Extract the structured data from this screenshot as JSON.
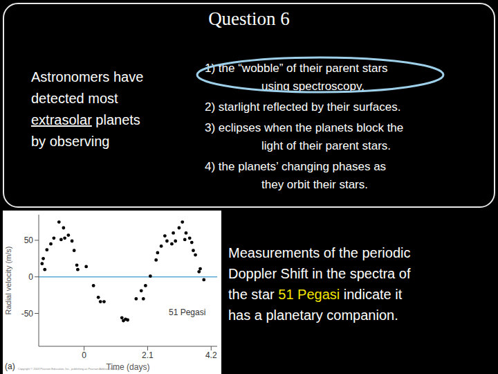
{
  "slide": {
    "title": "Question 6",
    "question": {
      "lines": [
        "Astronomers have",
        "detected most",
        "extrasolar planets",
        "by observing"
      ],
      "underlined": "extrasolar"
    },
    "options": [
      {
        "label": "1)",
        "lines": [
          "the “wobble” of their parent stars",
          "using spectroscopy."
        ]
      },
      {
        "label": "2)",
        "lines": [
          "starlight reflected by their surfaces."
        ]
      },
      {
        "label": "3)",
        "lines": [
          "eclipses when the planets block the",
          "light of their parent stars."
        ]
      },
      {
        "label": "4)",
        "lines": [
          "the planets’ changing phases as",
          "they orbit their stars."
        ]
      }
    ],
    "circled_option": 1,
    "circle_color": "#9fd0ea",
    "caption": {
      "lines": [
        "Measurements of the periodic",
        "Doppler Shift in the spectra of",
        "the star 51 Pegasi indicate it",
        "has a planetary companion."
      ],
      "highlight": "51 Pegasi",
      "highlight_color": "#f2e600"
    }
  },
  "chart_data": {
    "type": "scatter",
    "annotation": "51 Pegasi",
    "panel_label": "(a)",
    "credit": "Copyright © 2003 Pearson Education, Inc., publishing as Pearson Addison-Wesley",
    "x_label": "Time (days)",
    "y_label": "Radial velocity (m/s)",
    "xlim": [
      -1.5,
      4.4
    ],
    "ylim": [
      -95,
      85
    ],
    "xticks": [
      0,
      2.1,
      4.2
    ],
    "yticks": [
      -50,
      0,
      50
    ],
    "grid": false,
    "marker": "circle",
    "color": "#000000",
    "zero_line": {
      "value": 0,
      "color": "#5aa9d6"
    },
    "x": [
      -1.39,
      -1.35,
      -1.3,
      -1.23,
      -1.1,
      -1.0,
      -0.83,
      -0.76,
      -0.68,
      -0.64,
      -0.52,
      -0.4,
      -0.33,
      -0.24,
      -0.21,
      0.07,
      0.31,
      0.47,
      0.54,
      0.66,
      1.25,
      1.3,
      1.37,
      1.44,
      1.72,
      1.89,
      1.96,
      2.03,
      2.19,
      2.38,
      2.43,
      2.55,
      2.67,
      2.74,
      2.9,
      2.95,
      3.02,
      3.14,
      3.25,
      3.33,
      3.37,
      3.49,
      3.56,
      3.61,
      3.68,
      3.8,
      3.84,
      3.96
    ],
    "values": [
      18,
      25,
      10,
      37,
      45,
      53,
      75,
      51,
      67,
      53,
      57,
      49,
      36,
      16,
      10,
      14,
      -12,
      -28,
      -34,
      -34,
      -56,
      -60,
      -58,
      -59,
      -30,
      -19,
      -30,
      -12,
      1,
      23,
      33,
      42,
      56,
      49,
      45,
      60,
      49,
      67,
      75,
      51,
      60,
      53,
      47,
      36,
      30,
      7,
      11,
      -4
    ]
  }
}
